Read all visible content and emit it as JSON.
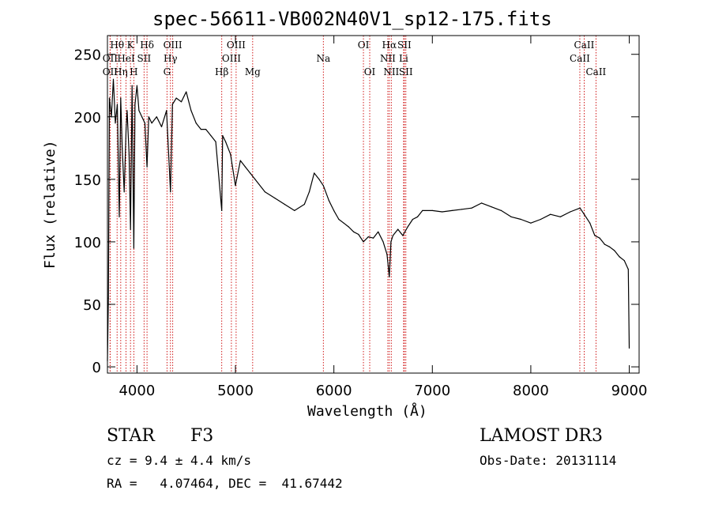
{
  "chart_data": {
    "type": "line",
    "title": "spec-56611-VB002N40V1_sp12-175.fits",
    "xlabel": "Wavelength (Å)",
    "ylabel": "Flux (relative)",
    "xlim": [
      3700,
      9100
    ],
    "ylim": [
      -5,
      265
    ],
    "x_ticks": [
      4000,
      5000,
      6000,
      7000,
      8000,
      9000
    ],
    "y_ticks": [
      0,
      50,
      100,
      150,
      200,
      250
    ],
    "grid": false,
    "series": [
      {
        "name": "flux",
        "x": [
          3700,
          3710,
          3720,
          3740,
          3760,
          3780,
          3800,
          3820,
          3835,
          3850,
          3870,
          3889,
          3900,
          3920,
          3934,
          3950,
          3968,
          3980,
          4000,
          4020,
          4050,
          4080,
          4102,
          4120,
          4150,
          4200,
          4250,
          4300,
          4340,
          4360,
          4400,
          4450,
          4500,
          4550,
          4600,
          4650,
          4700,
          4750,
          4800,
          4861,
          4870,
          4900,
          4950,
          5000,
          5050,
          5100,
          5150,
          5200,
          5300,
          5400,
          5500,
          5600,
          5700,
          5750,
          5800,
          5850,
          5893,
          5950,
          6000,
          6050,
          6100,
          6150,
          6200,
          6250,
          6300,
          6350,
          6400,
          6450,
          6500,
          6540,
          6563,
          6580,
          6600,
          6650,
          6700,
          6750,
          6800,
          6850,
          6900,
          7000,
          7100,
          7200,
          7300,
          7400,
          7500,
          7600,
          7700,
          7800,
          7900,
          8000,
          8100,
          8200,
          8300,
          8400,
          8500,
          8542,
          8600,
          8650,
          8700,
          8750,
          8800,
          8850,
          8900,
          8950,
          8990,
          9000
        ],
        "values": [
          5,
          55,
          215,
          200,
          230,
          195,
          210,
          120,
          215,
          175,
          140,
          190,
          205,
          170,
          110,
          225,
          95,
          210,
          225,
          205,
          200,
          195,
          160,
          200,
          195,
          200,
          192,
          205,
          140,
          210,
          215,
          212,
          220,
          205,
          195,
          190,
          190,
          185,
          180,
          125,
          185,
          180,
          170,
          145,
          165,
          160,
          155,
          150,
          140,
          135,
          130,
          125,
          130,
          140,
          155,
          150,
          145,
          133,
          125,
          118,
          115,
          112,
          108,
          106,
          100,
          104,
          103,
          108,
          100,
          90,
          72,
          100,
          105,
          110,
          105,
          112,
          118,
          120,
          125,
          125,
          124,
          125,
          126,
          127,
          131,
          128,
          125,
          120,
          118,
          115,
          118,
          122,
          120,
          124,
          127,
          122,
          115,
          105,
          103,
          98,
          96,
          93,
          88,
          85,
          78,
          15
        ]
      }
    ],
    "lines": [
      {
        "label": "Hθ",
        "wave": 3798,
        "row": 0
      },
      {
        "label": "Hη",
        "wave": 3835,
        "row": 2
      },
      {
        "label": "OII",
        "wave": 3727,
        "row": 1
      },
      {
        "label": "OII",
        "wave": 3727,
        "row": 2
      },
      {
        "label": "HeI",
        "wave": 3889,
        "row": 1
      },
      {
        "label": "K",
        "wave": 3934,
        "row": 0
      },
      {
        "label": "H",
        "wave": 3968,
        "row": 2
      },
      {
        "label": "Hδ",
        "wave": 4102,
        "row": 0
      },
      {
        "label": "SII",
        "wave": 4072,
        "row": 1
      },
      {
        "label": "OIII",
        "wave": 4363,
        "row": 0
      },
      {
        "label": "Hγ",
        "wave": 4340,
        "row": 1
      },
      {
        "label": "G",
        "wave": 4305,
        "row": 2
      },
      {
        "label": "Hβ",
        "wave": 4861,
        "row": 2
      },
      {
        "label": "OIII",
        "wave": 5007,
        "row": 0
      },
      {
        "label": "OIII",
        "wave": 4959,
        "row": 1
      },
      {
        "label": "Mg",
        "wave": 5175,
        "row": 2
      },
      {
        "label": "Na",
        "wave": 5893,
        "row": 1
      },
      {
        "label": "OI",
        "wave": 6300,
        "row": 0
      },
      {
        "label": "OI",
        "wave": 6364,
        "row": 2
      },
      {
        "label": "Hα",
        "wave": 6563,
        "row": 0
      },
      {
        "label": "NII",
        "wave": 6548,
        "row": 1
      },
      {
        "label": "NII",
        "wave": 6583,
        "row": 2
      },
      {
        "label": "SII",
        "wave": 6716,
        "row": 0
      },
      {
        "label": "Li",
        "wave": 6708,
        "row": 1
      },
      {
        "label": "SII",
        "wave": 6731,
        "row": 2
      },
      {
        "label": "CaII",
        "wave": 8542,
        "row": 0
      },
      {
        "label": "CaII",
        "wave": 8498,
        "row": 1
      },
      {
        "label": "CaII",
        "wave": 8662,
        "row": 2
      }
    ]
  },
  "info": {
    "class": "STAR",
    "subclass": "F3",
    "survey": "LAMOST DR3",
    "cz": "cz = 9.4 ± 4.4 km/s",
    "obsdate": "Obs-Date: 20131114",
    "radec": "RA =   4.07464, DEC =  41.67442"
  },
  "colors": {
    "line": "#000000",
    "marker": "#cc0000"
  }
}
